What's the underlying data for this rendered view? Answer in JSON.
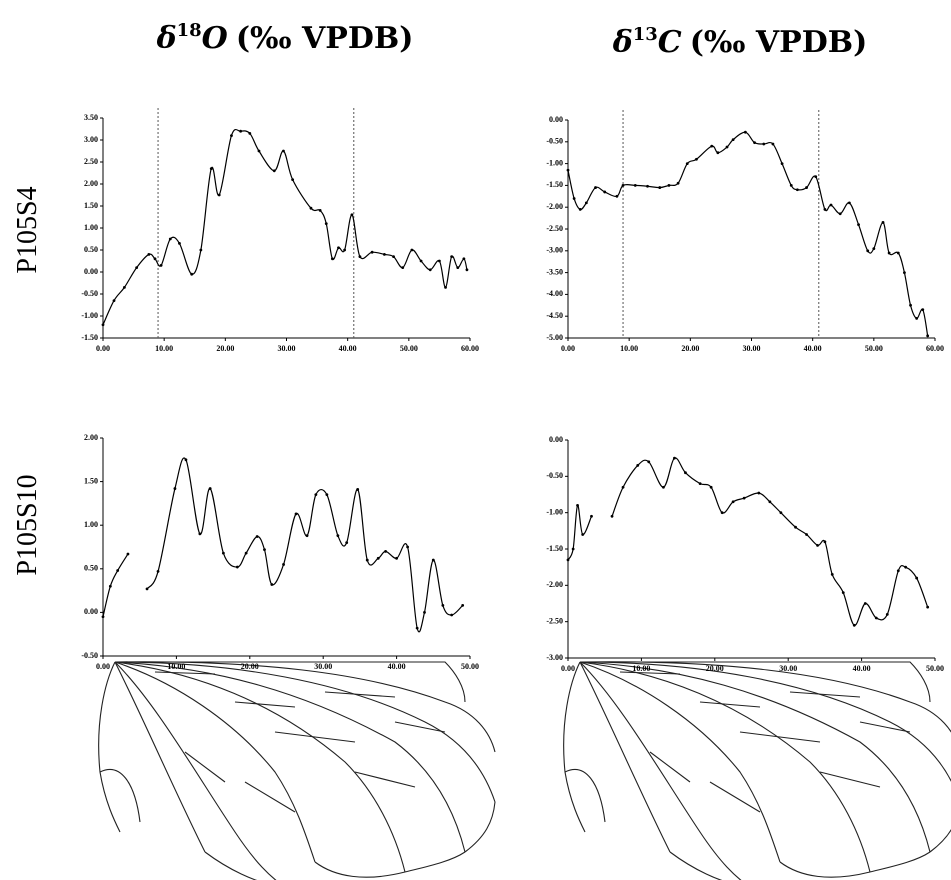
{
  "column_titles": [
    {
      "symbol": "δ",
      "mass": "18",
      "element": "O",
      "unit": "(‰ VPDB)"
    },
    {
      "symbol": "δ",
      "mass": "13",
      "element": "C",
      "unit": "(‰ VPDB)"
    }
  ],
  "row_labels": [
    "P105S4",
    "P105S10"
  ],
  "chart_data": [
    {
      "type": "line",
      "color": "#000",
      "xlim": [
        0,
        60
      ],
      "ylim": [
        -1.5,
        3.5
      ],
      "xticks": [
        {
          "value": 0,
          "label": "0.00"
        },
        {
          "value": 10,
          "label": "10.00"
        },
        {
          "value": 20,
          "label": "20.00"
        },
        {
          "value": 30,
          "label": "30.00"
        },
        {
          "value": 40,
          "label": "40.00"
        },
        {
          "value": 50,
          "label": "50.00"
        },
        {
          "value": 60,
          "label": "60.00"
        }
      ],
      "yticks": [
        {
          "value": -1.5,
          "label": "-1.50"
        },
        {
          "value": -1,
          "label": "-1.00"
        },
        {
          "value": -0.5,
          "label": "-0.50"
        },
        {
          "value": 0,
          "label": "0.00"
        },
        {
          "value": 0.5,
          "label": "0.50"
        },
        {
          "value": 1,
          "label": "1.00"
        },
        {
          "value": 1.5,
          "label": "1.50"
        },
        {
          "value": 2,
          "label": "2.00"
        },
        {
          "value": 2.5,
          "label": "2.50"
        },
        {
          "value": 3,
          "label": "3.00"
        },
        {
          "value": 3.5,
          "label": "3.50"
        }
      ],
      "vlines": [
        9,
        41
      ],
      "x": [
        0,
        1.8,
        3.5,
        5.5,
        7.5,
        8.5,
        9.5,
        11,
        12.5,
        14.5,
        16,
        17.7,
        19,
        21,
        22.5,
        24,
        25.5,
        28,
        29.5,
        31,
        34,
        35.5,
        36.5,
        37.5,
        38.5,
        39.5,
        40.7,
        42,
        44,
        46,
        47.5,
        49,
        50.5,
        52,
        53.5,
        55,
        56,
        57,
        58,
        59,
        59.5
      ],
      "values": [
        -1.2,
        -0.65,
        -0.35,
        0.1,
        0.4,
        0.3,
        0.15,
        0.75,
        0.65,
        -0.05,
        0.5,
        2.35,
        1.75,
        3.1,
        3.2,
        3.15,
        2.75,
        2.3,
        2.75,
        2.1,
        1.45,
        1.4,
        1.1,
        0.3,
        0.55,
        0.5,
        1.3,
        0.35,
        0.45,
        0.4,
        0.35,
        0.1,
        0.5,
        0.25,
        0.05,
        0.25,
        -0.35,
        0.35,
        0.1,
        0.3,
        0.05
      ]
    },
    {
      "type": "line",
      "color": "#000",
      "xlim": [
        0,
        60
      ],
      "ylim": [
        -5,
        0
      ],
      "xticks": [
        {
          "value": 0,
          "label": "0.00"
        },
        {
          "value": 10,
          "label": "10.00"
        },
        {
          "value": 20,
          "label": "20.00"
        },
        {
          "value": 30,
          "label": "30.00"
        },
        {
          "value": 40,
          "label": "40.00"
        },
        {
          "value": 50,
          "label": "50.00"
        },
        {
          "value": 60,
          "label": "60.00"
        }
      ],
      "yticks": [
        {
          "value": -5,
          "label": "-5.00"
        },
        {
          "value": -4.5,
          "label": "-4.50"
        },
        {
          "value": -4,
          "label": "-4.00"
        },
        {
          "value": -3.5,
          "label": "-3.50"
        },
        {
          "value": -3,
          "label": "-3.00"
        },
        {
          "value": -2.5,
          "label": "-2.50"
        },
        {
          "value": -2,
          "label": "-2.00"
        },
        {
          "value": -1.5,
          "label": "-1.50"
        },
        {
          "value": -1,
          "label": "-1.00"
        },
        {
          "value": -0.5,
          "label": "-0.50"
        },
        {
          "value": 0,
          "label": "0.00"
        }
      ],
      "vlines": [
        9,
        41
      ],
      "x": [
        0,
        1,
        2,
        3,
        4.5,
        6,
        8,
        9,
        11,
        13,
        15,
        16.5,
        18,
        19.5,
        21,
        23.5,
        24.5,
        26,
        27,
        29,
        30.5,
        32,
        33.5,
        35,
        36.5,
        37.5,
        39,
        40.5,
        42,
        43,
        44.5,
        46,
        47.5,
        49,
        50,
        51.5,
        52.5,
        54,
        55,
        56,
        57,
        58,
        58.8
      ],
      "values": [
        -1.15,
        -1.8,
        -2.05,
        -1.9,
        -1.55,
        -1.65,
        -1.75,
        -1.5,
        -1.5,
        -1.52,
        -1.55,
        -1.5,
        -1.45,
        -1.0,
        -0.9,
        -0.6,
        -0.75,
        -0.62,
        -0.45,
        -0.28,
        -0.52,
        -0.55,
        -0.55,
        -1.0,
        -1.5,
        -1.6,
        -1.55,
        -1.3,
        -2.05,
        -1.95,
        -2.15,
        -1.9,
        -2.4,
        -3.0,
        -2.95,
        -2.35,
        -3.05,
        -3.05,
        -3.5,
        -4.25,
        -4.55,
        -4.35,
        -4.95
      ]
    },
    {
      "type": "line",
      "color": "#000",
      "xlim": [
        0,
        50
      ],
      "ylim": [
        -0.5,
        2
      ],
      "xticks": [
        {
          "value": 0,
          "label": "0.00"
        },
        {
          "value": 10,
          "label": "10.00"
        },
        {
          "value": 20,
          "label": "20.00"
        },
        {
          "value": 30,
          "label": "30.00"
        },
        {
          "value": 40,
          "label": "40.00"
        },
        {
          "value": 50,
          "label": "50.00"
        }
      ],
      "yticks": [
        {
          "value": -0.5,
          "label": "-0.50"
        },
        {
          "value": 0,
          "label": "0.00"
        },
        {
          "value": 0.5,
          "label": "0.50"
        },
        {
          "value": 1,
          "label": "1.00"
        },
        {
          "value": 1.5,
          "label": "1.50"
        },
        {
          "value": 2,
          "label": "2.00"
        }
      ],
      "x": [
        0,
        1,
        2,
        3.4,
        null,
        6,
        7.5,
        9.8,
        11.3,
        13.2,
        14.6,
        16.4,
        18.3,
        19.5,
        21,
        22,
        23,
        24.6,
        26.3,
        27.8,
        29,
        30.5,
        32,
        33.2,
        34.7,
        36,
        37.5,
        38.5,
        40,
        41.5,
        42.8,
        43.8,
        45,
        46.3,
        47.5,
        49
      ],
      "values": [
        -0.05,
        0.3,
        0.48,
        0.67,
        null,
        0.27,
        0.47,
        1.42,
        1.75,
        0.9,
        1.42,
        0.68,
        0.52,
        0.68,
        0.87,
        0.72,
        0.32,
        0.55,
        1.13,
        0.88,
        1.35,
        1.35,
        0.88,
        0.8,
        1.41,
        0.6,
        0.62,
        0.7,
        0.62,
        0.75,
        -0.18,
        0.0,
        0.6,
        0.08,
        -0.03,
        0.08
      ]
    },
    {
      "type": "line",
      "color": "#000",
      "xlim": [
        0,
        50
      ],
      "ylim": [
        -3,
        0
      ],
      "xticks": [
        {
          "value": 0,
          "label": "0.00"
        },
        {
          "value": 10,
          "label": "10.00"
        },
        {
          "value": 20,
          "label": "20.00"
        },
        {
          "value": 30,
          "label": "30.00"
        },
        {
          "value": 40,
          "label": "40.00"
        },
        {
          "value": 50,
          "label": "50.00"
        }
      ],
      "yticks": [
        {
          "value": -3,
          "label": "-3.00"
        },
        {
          "value": -2.5,
          "label": "-2.50"
        },
        {
          "value": -2,
          "label": "-2.00"
        },
        {
          "value": -1.5,
          "label": "-1.50"
        },
        {
          "value": -1,
          "label": "-1.00"
        },
        {
          "value": -0.5,
          "label": "-0.50"
        },
        {
          "value": 0,
          "label": "0.00"
        }
      ],
      "x": [
        0,
        0.7,
        1.3,
        2,
        3.2,
        null,
        6,
        7.5,
        9.5,
        11,
        13,
        14.5,
        16,
        18,
        19.5,
        21,
        22.5,
        24,
        26,
        27.5,
        29,
        31,
        32.5,
        34,
        35,
        36,
        37.5,
        39,
        40.5,
        42,
        43.5,
        45,
        46,
        47.5,
        49
      ],
      "values": [
        -1.65,
        -1.5,
        -0.9,
        -1.3,
        -1.05,
        null,
        -1.05,
        -0.65,
        -0.35,
        -0.3,
        -0.65,
        -0.25,
        -0.45,
        -0.6,
        -0.65,
        -1.0,
        -0.85,
        -0.8,
        -0.73,
        -0.85,
        -1.0,
        -1.2,
        -1.3,
        -1.45,
        -1.4,
        -1.85,
        -2.1,
        -2.55,
        -2.25,
        -2.45,
        -2.4,
        -1.8,
        -1.75,
        -1.9,
        -2.3
      ]
    }
  ]
}
